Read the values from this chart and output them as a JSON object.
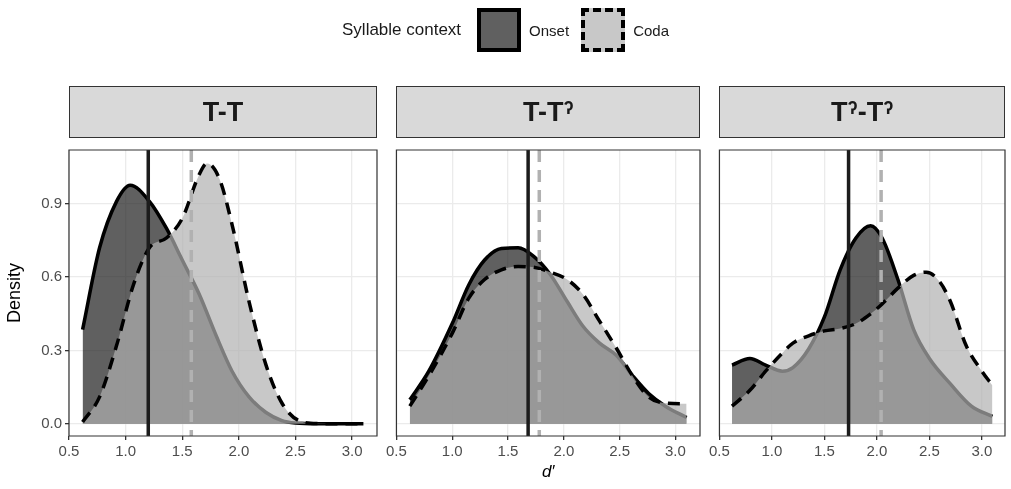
{
  "chart_data": [
    {
      "type": "area",
      "title": "T-T",
      "ylabel": "Density",
      "legend": "top",
      "legend_title": "Syllable context",
      "grid": true,
      "xlim": [
        0.5,
        3.22
      ],
      "ylim": [
        -0.05,
        1.12
      ],
      "xticks": [
        0.5,
        {
          "value": 1,
          "label": "1.0"
        },
        1.5,
        {
          "value": 2,
          "label": "2.0"
        },
        2.5,
        {
          "value": 3,
          "label": "3.0"
        }
      ],
      "yticks": [
        {
          "value": 0,
          "label": "0.0"
        },
        0.3,
        0.6,
        0.9
      ],
      "series": [
        {
          "name": "Onset",
          "color": "#1c1c1c",
          "line_style": "solid",
          "x": [
            0.62,
            0.77,
            0.92,
            1.04,
            1.21,
            1.36,
            1.5,
            1.65,
            1.8,
            1.94,
            2.09,
            2.24,
            2.38,
            2.5,
            2.7,
            3.1
          ],
          "values": [
            0.385,
            0.72,
            0.91,
            0.976,
            0.91,
            0.8,
            0.67,
            0.53,
            0.36,
            0.215,
            0.11,
            0.046,
            0.013,
            0.003,
            0,
            0
          ]
        },
        {
          "name": "Coda",
          "color": "#b1b1b1",
          "line_style": "dashed",
          "x": [
            0.62,
            0.77,
            0.92,
            1.07,
            1.21,
            1.36,
            1.5,
            1.65,
            1.72,
            1.83,
            1.94,
            2.09,
            2.24,
            2.38,
            2.53,
            2.7,
            3.1
          ],
          "values": [
            0.007,
            0.11,
            0.32,
            0.57,
            0.72,
            0.76,
            0.84,
            1.02,
            1.065,
            1.0,
            0.815,
            0.5,
            0.24,
            0.085,
            0.013,
            0.001,
            0
          ]
        }
      ],
      "ref_lines": [
        {
          "axis": "x",
          "value": 1.2,
          "color": "#1c1c1c",
          "line_style": "solid"
        },
        {
          "axis": "x",
          "value": 1.58,
          "color": "#b1b1b1",
          "line_style": "dashed"
        }
      ]
    },
    {
      "type": "area",
      "title": "T-Tˀ",
      "xlabel": "d′",
      "grid": true,
      "tick_labels": "x",
      "xlim": [
        0.5,
        3.22
      ],
      "ylim": [
        -0.05,
        1.12
      ],
      "xticks": [
        0.5,
        {
          "value": 1,
          "label": "1.0"
        },
        1.5,
        {
          "value": 2,
          "label": "2.0"
        },
        2.5,
        {
          "value": 3,
          "label": "3.0"
        }
      ],
      "yticks": [
        0,
        0.3,
        0.6,
        0.9
      ],
      "series": [
        {
          "color": "#1c1c1c",
          "line_style": "solid",
          "x": [
            0.62,
            0.79,
            1.0,
            1.15,
            1.29,
            1.44,
            1.59,
            1.73,
            1.88,
            2.03,
            2.17,
            2.32,
            2.47,
            2.61,
            2.76,
            2.91,
            3.1
          ],
          "values": [
            0.098,
            0.215,
            0.41,
            0.57,
            0.67,
            0.717,
            0.72,
            0.685,
            0.61,
            0.5,
            0.4,
            0.33,
            0.28,
            0.2,
            0.124,
            0.072,
            0.026
          ]
        },
        {
          "color": "#b1b1b1",
          "line_style": "dashed",
          "x": [
            0.62,
            0.79,
            1.0,
            1.15,
            1.29,
            1.44,
            1.59,
            1.73,
            1.88,
            2.03,
            2.17,
            2.32,
            2.47,
            2.61,
            2.76,
            2.91,
            3.1
          ],
          "values": [
            0.072,
            0.196,
            0.37,
            0.515,
            0.59,
            0.63,
            0.643,
            0.64,
            0.62,
            0.59,
            0.53,
            0.42,
            0.31,
            0.2,
            0.11,
            0.085,
            0.082
          ]
        }
      ],
      "ref_lines": [
        {
          "axis": "x",
          "value": 1.68,
          "color": "#1c1c1c",
          "line_style": "solid"
        },
        {
          "axis": "x",
          "value": 1.78,
          "color": "#b1b1b1",
          "line_style": "dashed"
        }
      ]
    },
    {
      "type": "area",
      "title": "Tˀ-Tˀ",
      "grid": true,
      "tick_labels": "x",
      "xlim": [
        0.5,
        3.22
      ],
      "ylim": [
        -0.05,
        1.12
      ],
      "xticks": [
        0.5,
        {
          "value": 1,
          "label": "1.0"
        },
        1.5,
        {
          "value": 2,
          "label": "2.0"
        },
        2.5,
        {
          "value": 3,
          "label": "3.0"
        }
      ],
      "yticks": [
        0,
        0.3,
        0.6,
        0.9
      ],
      "series": [
        {
          "color": "#1c1c1c",
          "line_style": "solid",
          "x": [
            0.62,
            0.79,
            0.94,
            1.1,
            1.2,
            1.35,
            1.5,
            1.65,
            1.8,
            1.94,
            2.05,
            2.2,
            2.35,
            2.5,
            2.7,
            2.9,
            3.1
          ],
          "values": [
            0.24,
            0.267,
            0.24,
            0.215,
            0.23,
            0.306,
            0.437,
            0.63,
            0.76,
            0.81,
            0.76,
            0.59,
            0.385,
            0.267,
            0.163,
            0.072,
            0.03
          ]
        },
        {
          "color": "#b1b1b1",
          "line_style": "dashed",
          "x": [
            0.62,
            0.79,
            0.94,
            1.1,
            1.2,
            1.35,
            1.5,
            1.65,
            1.8,
            1.94,
            2.05,
            2.2,
            2.35,
            2.47,
            2.6,
            2.7,
            2.85,
            3.0,
            3.1
          ],
          "values": [
            0.072,
            0.137,
            0.215,
            0.29,
            0.33,
            0.36,
            0.38,
            0.39,
            0.41,
            0.45,
            0.49,
            0.555,
            0.607,
            0.62,
            0.58,
            0.5,
            0.32,
            0.215,
            0.157
          ]
        }
      ],
      "ref_lines": [
        {
          "axis": "x",
          "value": 1.73,
          "color": "#1c1c1c",
          "line_style": "solid"
        },
        {
          "axis": "x",
          "value": 2.04,
          "color": "#b1b1b1",
          "line_style": "dashed"
        }
      ]
    }
  ]
}
